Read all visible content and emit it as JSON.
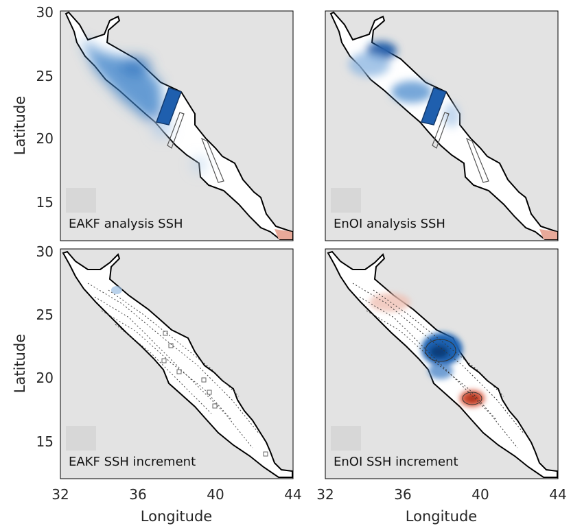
{
  "figure": {
    "y_axis_label": "Latitude",
    "x_axis_label": "Longitude",
    "y_ticks": [
      "30",
      "25",
      "20",
      "15"
    ],
    "x_ticks": [
      "32",
      "36",
      "40",
      "44"
    ],
    "lon_range": [
      32,
      44
    ],
    "lat_range": [
      12,
      30
    ],
    "colors": {
      "background": "#e3e3e3",
      "sea": "#ffffff",
      "coast": "#000000",
      "positive": "#d9553a",
      "negative": "#1f64b4"
    }
  },
  "panels": [
    {
      "id": "eakf-analysis",
      "title": "EAKF analysis SSH"
    },
    {
      "id": "enoi-analysis",
      "title": "EnOI analysis SSH"
    },
    {
      "id": "eakf-increment",
      "title": "EAKF SSH increment"
    },
    {
      "id": "enoi-increment",
      "title": "EnOI SSH increment"
    }
  ]
}
